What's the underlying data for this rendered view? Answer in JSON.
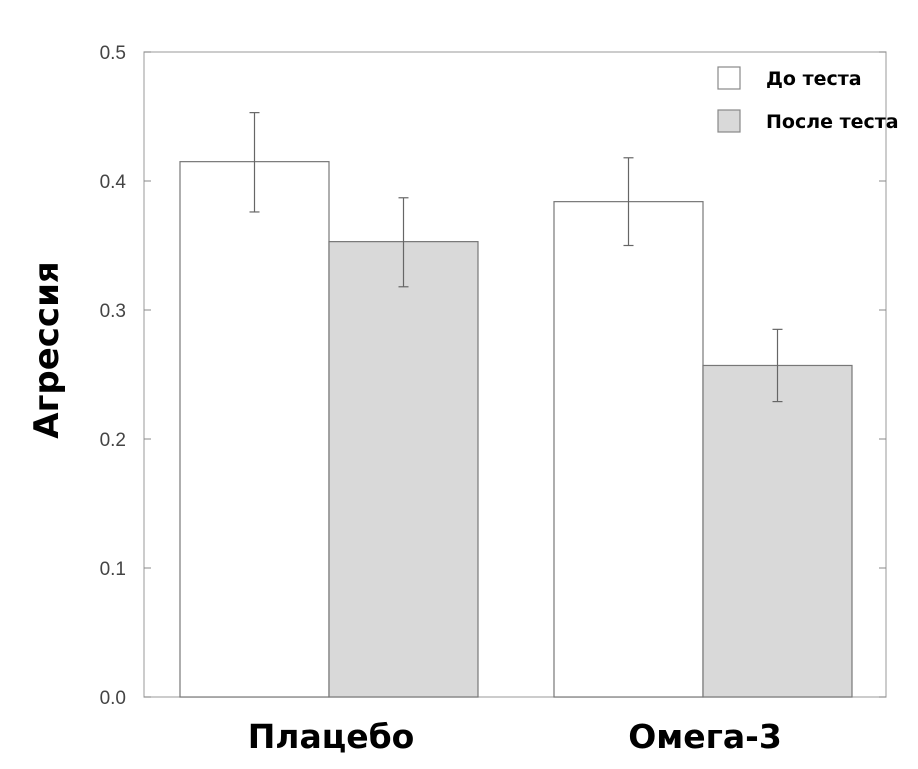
{
  "chart_data": {
    "type": "bar",
    "categories": [
      "Плацебо",
      "Омега-3"
    ],
    "series": [
      {
        "name": "До теста",
        "values": [
          0.415,
          0.384
        ],
        "error_low": [
          0.376,
          0.35
        ],
        "error_high": [
          0.453,
          0.418
        ],
        "color": "#ffffff"
      },
      {
        "name": "После теста",
        "values": [
          0.353,
          0.257
        ],
        "error_low": [
          0.318,
          0.229
        ],
        "error_high": [
          0.387,
          0.285
        ],
        "color": "#d9d9d9"
      }
    ],
    "ylabel": "Агрессия",
    "xlabel": "",
    "ylim": [
      0.0,
      0.5
    ],
    "yticks": [
      "0.0",
      "0.1",
      "0.2",
      "0.3",
      "0.4",
      "0.5"
    ],
    "legend_position": "top-right",
    "grid": false
  }
}
